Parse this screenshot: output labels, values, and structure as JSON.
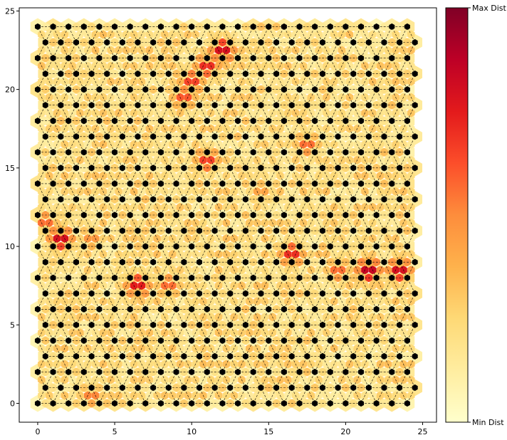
{
  "chart_data": {
    "type": "heatmap",
    "subtype": "self-organizing-map-u-matrix-hexagonal",
    "grid_rows": 25,
    "grid_cols": 25,
    "xlim": [
      -1.2,
      25.9
    ],
    "ylim": [
      -1.2,
      25.2
    ],
    "xticks": [
      "0",
      "5",
      "10",
      "15",
      "20",
      "25"
    ],
    "yticks": [
      "0",
      "5",
      "10",
      "15",
      "20",
      "25"
    ],
    "colormap": "YlOrRd",
    "colors": {
      "node": "#000000",
      "edge": "#000000",
      "colormap_stops": [
        "#ffffcc",
        "#ffeda0",
        "#fed976",
        "#feb24c",
        "#fd8d3c",
        "#fc4e2a",
        "#e31a1c",
        "#bd0026",
        "#800026"
      ]
    },
    "colorbar": {
      "max_label": "Max Dist",
      "min_label": "Min Dist"
    },
    "high_distance_regions": [
      {
        "x": 12,
        "y": 22.5,
        "value": 0.85
      },
      {
        "x": 11,
        "y": 21.5,
        "value": 0.75
      },
      {
        "x": 10,
        "y": 20.5,
        "value": 0.7
      },
      {
        "x": 9.5,
        "y": 19.5,
        "value": 0.65
      },
      {
        "x": 11,
        "y": 15.5,
        "value": 0.7
      },
      {
        "x": 17.5,
        "y": 16.5,
        "value": 0.6
      },
      {
        "x": 1.5,
        "y": 10.5,
        "value": 0.85
      },
      {
        "x": 0.5,
        "y": 11.5,
        "value": 0.6
      },
      {
        "x": 3.5,
        "y": 10.5,
        "value": 0.5
      },
      {
        "x": 6.5,
        "y": 7.5,
        "value": 0.8
      },
      {
        "x": 8.5,
        "y": 7.5,
        "value": 0.6
      },
      {
        "x": 16.5,
        "y": 9.5,
        "value": 0.75
      },
      {
        "x": 21.5,
        "y": 8.5,
        "value": 0.9
      },
      {
        "x": 23.5,
        "y": 8.5,
        "value": 0.85
      },
      {
        "x": 19.5,
        "y": 8.5,
        "value": 0.6
      },
      {
        "x": 3.5,
        "y": 0.5,
        "value": 0.55
      },
      {
        "x": 14.5,
        "y": 13.5,
        "value": 0.45
      }
    ]
  }
}
